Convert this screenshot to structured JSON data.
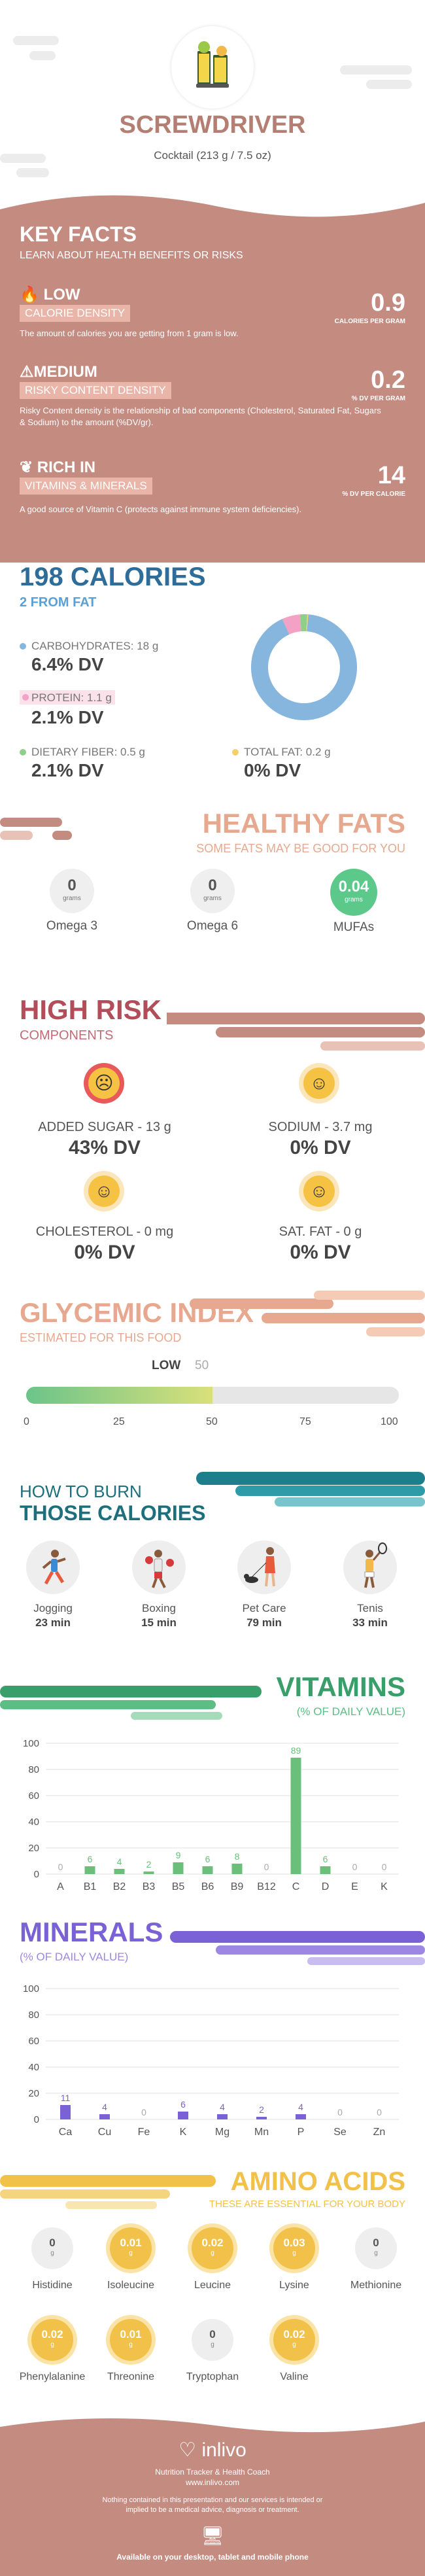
{
  "header": {
    "title": "SCREWDRIVER",
    "subtitle": "Cocktail (213 g / 7.5 oz)",
    "food_icon": "cocktail-glasses-icon"
  },
  "key_facts": {
    "title": "KEY FACTS",
    "subtitle": "LEARN ABOUT HEALTH BENEFITS OR RISKS",
    "items": [
      {
        "icon": "flame-icon",
        "level": "LOW",
        "label": "CALORIE DENSITY",
        "value": "0.9",
        "unit": "CALORIES PER GRAM",
        "desc": "The amount of calories you are getting from 1 gram is low."
      },
      {
        "icon": "warning-icon",
        "level": "MEDIUM",
        "label": "RISKY CONTENT DENSITY",
        "value": "0.2",
        "unit": "% DV PER GRAM",
        "desc": "Risky Content density is the relationship of bad components (Cholesterol, Saturated Fat, Sugars & Sodium) to the amount (%DV/gr)."
      },
      {
        "icon": "leaf-icon",
        "level": "RICH IN",
        "label": "VITAMINS & MINERALS",
        "value": "14",
        "unit": "% DV PER CALORIE",
        "desc": "A good source of Vitamin C (protects against immune system deficiencies)."
      }
    ],
    "bg_color": "#c48b80"
  },
  "calories": {
    "title": "198 CALORIES",
    "subtitle": "2 FROM FAT",
    "macros": [
      {
        "name": "CARBOHYDRATES: 18 g",
        "dv": "6.4% DV",
        "color": "#86b5dd"
      },
      {
        "name": "PROTEIN: 1.1 g",
        "dv": "2.1% DV",
        "color": "#f3a1c5"
      },
      {
        "name": "DIETARY FIBER: 0.5 g",
        "dv": "2.1% DV",
        "color": "#8fcf8a"
      },
      {
        "name": "TOTAL FAT: 0.2 g",
        "dv": "0% DV",
        "color": "#f5cf6b"
      }
    ],
    "donut": [
      {
        "name": "CARBOHYDRATES",
        "share": 0.92,
        "color": "#86b5dd"
      },
      {
        "name": "PROTEIN",
        "share": 0.055,
        "color": "#f3a1c5"
      },
      {
        "name": "DIETARY FIBER",
        "share": 0.022,
        "color": "#8fcf8a"
      },
      {
        "name": "TOTAL FAT",
        "share": 0.003,
        "color": "#f5cf6b"
      }
    ]
  },
  "healthy_fats": {
    "title": "HEALTHY FATS",
    "subtitle": "SOME FATS MAY BE GOOD FOR YOU",
    "items": [
      {
        "value": "0",
        "unit": "grams",
        "name": "Omega 3"
      },
      {
        "value": "0",
        "unit": "grams",
        "name": "Omega 6"
      },
      {
        "value": "0.04",
        "unit": "grams",
        "name": "MUFAs"
      }
    ]
  },
  "high_risk": {
    "title": "HIGH RISK",
    "subtitle": "COMPONENTS",
    "items": [
      {
        "icon": "sad-face-icon",
        "name": "ADDED SUGAR - 13 g",
        "dv": "43% DV"
      },
      {
        "icon": "happy-face-icon",
        "name": "SODIUM - 3.7 mg",
        "dv": "0% DV"
      },
      {
        "icon": "happy-face-icon",
        "name": "CHOLESTEROL - 0 mg",
        "dv": "0% DV"
      },
      {
        "icon": "happy-face-icon",
        "name": "SAT. FAT - 0 g",
        "dv": "0% DV"
      }
    ]
  },
  "glycemic": {
    "title": "GLYCEMIC INDEX",
    "subtitle": "ESTIMATED FOR THIS FOOD",
    "level": "LOW",
    "value": "50",
    "value_num": 50,
    "ticks": [
      "0",
      "25",
      "50",
      "75",
      "100"
    ]
  },
  "burn": {
    "title_line1": "HOW TO BURN",
    "title_line2": "THOSE CALORIES",
    "items": [
      {
        "icon": "jogging-icon",
        "name": "Jogging",
        "time": "23 min"
      },
      {
        "icon": "boxing-icon",
        "name": "Boxing",
        "time": "15 min"
      },
      {
        "icon": "pet-care-icon",
        "name": "Pet Care",
        "time": "79 min"
      },
      {
        "icon": "tennis-icon",
        "name": "Tenis",
        "time": "33 min"
      }
    ]
  },
  "vitamins": {
    "title": "VITAMINS",
    "subtitle": "(% OF DAILY VALUE)",
    "chart_data": {
      "type": "bar",
      "categories": [
        "A",
        "B1",
        "B2",
        "B3",
        "B5",
        "B6",
        "B9",
        "B12",
        "C",
        "D",
        "E",
        "K"
      ],
      "values": [
        0,
        6,
        4,
        2,
        9,
        6,
        8,
        0,
        89,
        6,
        0,
        0
      ],
      "labels": [
        "0",
        "6",
        "4",
        "2",
        "9",
        "6",
        "8",
        "0",
        "89",
        "6",
        "0",
        "0"
      ],
      "ylim": [
        0,
        100
      ],
      "yticks": [
        "0",
        "20",
        "40",
        "60",
        "80",
        "100"
      ],
      "color": "#6bbf7a"
    }
  },
  "minerals": {
    "title": "MINERALS",
    "subtitle": "(% OF DAILY VALUE)",
    "chart_data": {
      "type": "bar",
      "categories": [
        "Ca",
        "Cu",
        "Fe",
        "K",
        "Mg",
        "Mn",
        "P",
        "Se",
        "Zn"
      ],
      "values": [
        11,
        4,
        0,
        6,
        4,
        2,
        4,
        0,
        0
      ],
      "labels": [
        "11",
        "4",
        "0",
        "6",
        "4",
        "2",
        "4",
        "0",
        "0"
      ],
      "ylim": [
        0,
        100
      ],
      "yticks": [
        "0",
        "20",
        "40",
        "60",
        "80",
        "100"
      ],
      "color": "#7b61d6"
    }
  },
  "amino": {
    "title": "AMINO ACIDS",
    "subtitle": "THESE ARE ESSENTIAL FOR YOUR BODY",
    "unit": "g",
    "items": [
      {
        "value": "0",
        "name": "Histidine"
      },
      {
        "value": "0.01",
        "name": "Isoleucine"
      },
      {
        "value": "0.02",
        "name": "Leucine"
      },
      {
        "value": "0.03",
        "name": "Lysine"
      },
      {
        "value": "0",
        "name": "Methionine"
      },
      {
        "value": "0.02",
        "name": "Phenylalanine"
      },
      {
        "value": "0.01",
        "name": "Threonine"
      },
      {
        "value": "0",
        "name": "Tryptophan"
      },
      {
        "value": "0.02",
        "name": "Valine"
      }
    ]
  },
  "footer": {
    "brand": "inlivo",
    "tagline": "Nutrition Tracker & Health Coach",
    "url": "www.inlivo.com",
    "disclaimer": "Nothing contained in this presentation and our services is intended or implied to be a medical advice, diagnosis or treatment.",
    "available": "Available on your desktop, tablet and mobile phone"
  }
}
